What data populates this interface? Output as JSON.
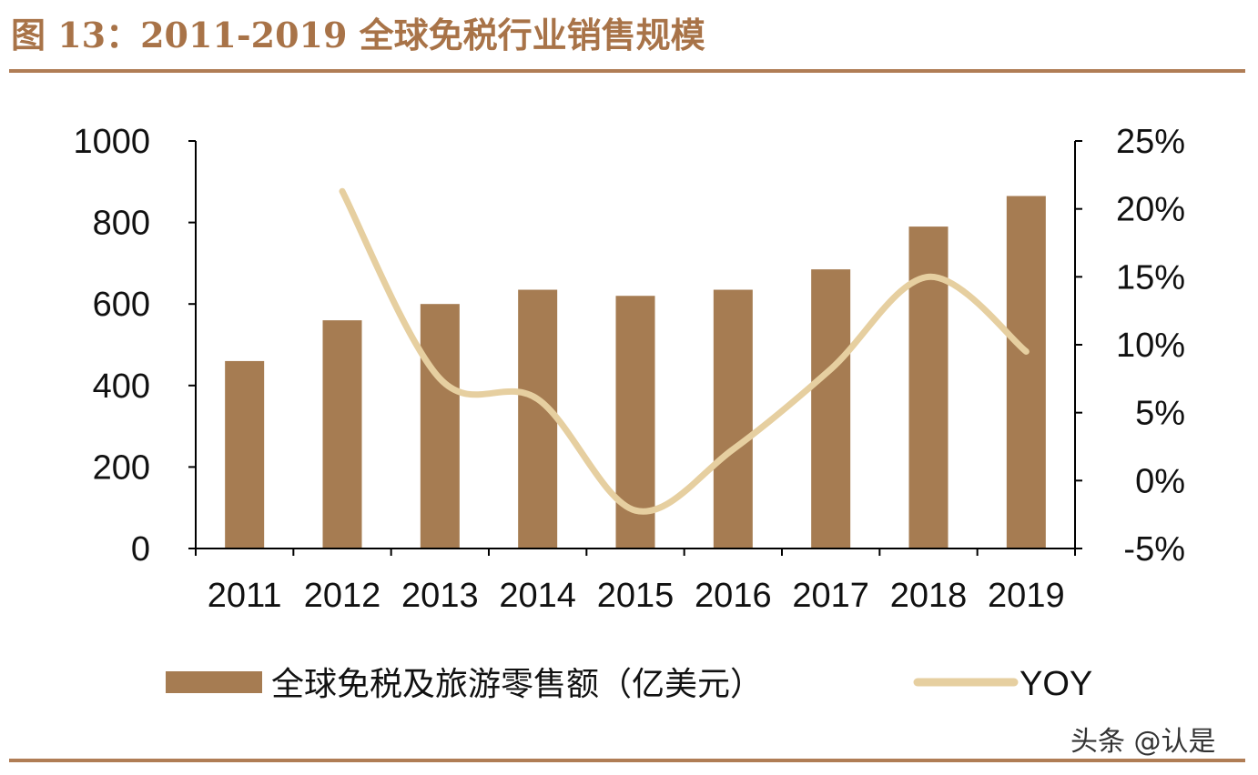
{
  "figure_title": "图 13：2011-2019 全球免税行业销售规模",
  "watermark": "头条 @认是",
  "colors": {
    "bar": "#a67c52",
    "line": "#e6cfa0",
    "rule": "#b07d55",
    "title": "#a87348"
  },
  "chart_data": {
    "type": "bar+line",
    "categories": [
      "2011",
      "2012",
      "2013",
      "2014",
      "2015",
      "2016",
      "2017",
      "2018",
      "2019"
    ],
    "series": [
      {
        "name": "全球免税及旅游零售额（亿美元）",
        "type": "bar",
        "axis": "left",
        "values": [
          460,
          560,
          600,
          635,
          620,
          635,
          685,
          790,
          865
        ]
      },
      {
        "name": "YOY",
        "type": "line",
        "axis": "right",
        "values": [
          null,
          21.3,
          7.5,
          6.0,
          -2.2,
          2.3,
          8.2,
          15.0,
          9.5
        ]
      }
    ],
    "left_axis": {
      "ylim": [
        0,
        1000
      ],
      "ticks": [
        "0",
        "200",
        "400",
        "600",
        "800",
        "1000"
      ]
    },
    "right_axis": {
      "ylim": [
        -5,
        25
      ],
      "ticks": [
        "-5%",
        "0%",
        "5%",
        "10%",
        "15%",
        "20%",
        "25%"
      ]
    },
    "legend_position": "bottom",
    "grid": false
  }
}
